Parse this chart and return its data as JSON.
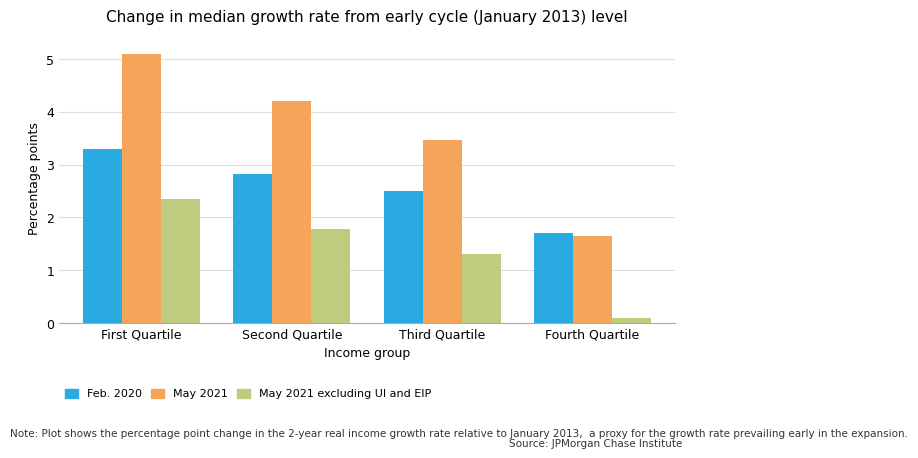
{
  "title": "Change in median growth rate from early cycle (January 2013) level",
  "categories": [
    "First Quartile",
    "Second Quartile",
    "Third Quartile",
    "Fourth Quartile"
  ],
  "series": {
    "Feb. 2020": [
      3.3,
      2.82,
      2.5,
      1.7
    ],
    "May 2021": [
      5.1,
      4.2,
      3.47,
      1.65
    ],
    "May 2021 excluding UI and EIP": [
      2.35,
      1.78,
      1.3,
      0.09
    ]
  },
  "colors": {
    "Feb. 2020": "#29ABE2",
    "May 2021": "#F5A55A",
    "May 2021 excluding UI and EIP": "#BFCC80"
  },
  "xlabel": "Income group",
  "ylabel": "Percentage points",
  "ylim": [
    0,
    5.5
  ],
  "yticks": [
    0,
    1,
    2,
    3,
    4,
    5
  ],
  "note": "Note: Plot shows the percentage point change in the 2-year real income growth rate relative to January 2013,  a proxy for the growth rate prevailing early in the expansion.",
  "source": "Source: JPMorgan Chase Institute",
  "background_color": "#FFFFFF",
  "title_fontsize": 11,
  "axis_label_fontsize": 9,
  "tick_fontsize": 9,
  "legend_fontsize": 8,
  "note_fontsize": 7.5,
  "bar_width": 0.26,
  "bar_gap": 0.0
}
